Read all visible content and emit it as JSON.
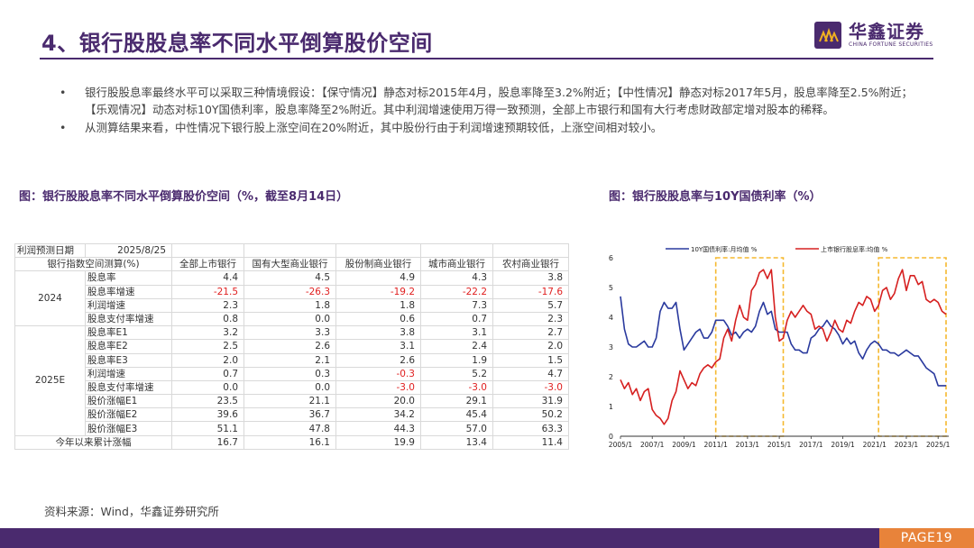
{
  "slide": {
    "title": "4、银行股股息率不同水平倒算股价空间",
    "logo_cn": "华鑫证券",
    "logo_en": "CHINA FORTUNE SECURITIES",
    "page": "PAGE19",
    "source": "资料来源：Wind，华鑫证券研究所"
  },
  "bullets": [
    "银行股股息率最终水平可以采取三种情境假设：【保守情况】静态对标2015年4月，股息率降至3.2%附近；【中性情况】静态对标2017年5月，股息率降至2.5%附近；【乐观情况】动态对标10Y国债利率，股息率降至2%附近。其中利润增速使用万得一致预测，全部上市银行和国有大行考虑财政部定增对股本的稀释。",
    "从测算结果来看，中性情况下银行股上涨空间在20%附近，其中股份行由于利润增速预期较低，上涨空间相对较小。"
  ],
  "table": {
    "title": "图：银行股股息率不同水平倒算股价空间（%，截至8月14日）",
    "date_label": "利润预测日期",
    "date_value": "2025/8/25",
    "corner_label": "银行指数空间测算(%)",
    "columns": [
      "全部上市银行",
      "国有大型商业银行",
      "股份制商业银行",
      "城市商业银行",
      "农村商业银行"
    ],
    "groups": [
      {
        "label": "2024",
        "rows": [
          {
            "label": "股息率",
            "values": [
              "4.4",
              "4.5",
              "4.9",
              "4.3",
              "3.8"
            ]
          },
          {
            "label": "股息率增速",
            "values": [
              "-21.5",
              "-26.3",
              "-19.2",
              "-22.2",
              "-17.6"
            ]
          },
          {
            "label": "利润增速",
            "values": [
              "2.3",
              "1.8",
              "1.8",
              "7.3",
              "5.7"
            ]
          },
          {
            "label": "股息支付率增速",
            "values": [
              "0.8",
              "0.0",
              "0.6",
              "0.7",
              "2.3"
            ]
          }
        ]
      },
      {
        "label": "2025E",
        "rows": [
          {
            "label": "股息率E1",
            "values": [
              "3.2",
              "3.3",
              "3.8",
              "3.1",
              "2.7"
            ]
          },
          {
            "label": "股息率E2",
            "values": [
              "2.5",
              "2.6",
              "3.1",
              "2.4",
              "2.0"
            ]
          },
          {
            "label": "股息率E3",
            "values": [
              "2.0",
              "2.1",
              "2.6",
              "1.9",
              "1.5"
            ]
          },
          {
            "label": "利润增速",
            "values": [
              "0.7",
              "0.3",
              "-0.3",
              "5.2",
              "4.7"
            ]
          },
          {
            "label": "股息支付率增速",
            "values": [
              "0.0",
              "0.0",
              "-3.0",
              "-3.0",
              "-3.0"
            ]
          },
          {
            "label": "股价涨幅E1",
            "values": [
              "23.5",
              "21.1",
              "20.0",
              "29.1",
              "31.9"
            ]
          },
          {
            "label": "股价涨幅E2",
            "values": [
              "39.6",
              "36.7",
              "34.2",
              "45.4",
              "50.2"
            ]
          },
          {
            "label": "股价涨幅E3",
            "values": [
              "51.1",
              "47.8",
              "44.3",
              "57.0",
              "63.3"
            ]
          }
        ]
      }
    ],
    "total_row": {
      "label": "今年以来累计涨幅",
      "values": [
        "16.7",
        "16.1",
        "19.9",
        "13.4",
        "11.4"
      ]
    }
  },
  "chart_data": {
    "type": "line",
    "title": "图：银行股股息率与10Y国债利率（%）",
    "x_ticks": [
      "2005/1",
      "2007/1",
      "2009/1",
      "2011/1",
      "2013/1",
      "2015/1",
      "2017/1",
      "2019/1",
      "2021/1",
      "2023/1",
      "2025/1"
    ],
    "ylim": [
      0,
      6
    ],
    "y_ticks": [
      0,
      1,
      2,
      3,
      4,
      5,
      6
    ],
    "series": [
      {
        "name": "10Y国债利率:月均值 %",
        "color": "#2a3a9e",
        "x": [
          2005.0,
          2005.25,
          2005.5,
          2005.75,
          2006.0,
          2006.25,
          2006.5,
          2006.75,
          2007.0,
          2007.25,
          2007.5,
          2007.75,
          2008.0,
          2008.25,
          2008.5,
          2008.75,
          2009.0,
          2009.25,
          2009.5,
          2009.75,
          2010.0,
          2010.25,
          2010.5,
          2010.75,
          2011.0,
          2011.25,
          2011.5,
          2011.75,
          2012.0,
          2012.25,
          2012.5,
          2012.75,
          2013.0,
          2013.25,
          2013.5,
          2013.75,
          2014.0,
          2014.25,
          2014.5,
          2014.75,
          2015.0,
          2015.25,
          2015.5,
          2015.75,
          2016.0,
          2016.25,
          2016.5,
          2016.75,
          2017.0,
          2017.25,
          2017.5,
          2017.75,
          2018.0,
          2018.25,
          2018.5,
          2018.75,
          2019.0,
          2019.25,
          2019.5,
          2019.75,
          2020.0,
          2020.25,
          2020.5,
          2020.75,
          2021.0,
          2021.25,
          2021.5,
          2021.75,
          2022.0,
          2022.25,
          2022.5,
          2022.75,
          2023.0,
          2023.25,
          2023.5,
          2023.75,
          2024.0,
          2024.25,
          2024.5,
          2024.75,
          2025.0,
          2025.25,
          2025.5
        ],
        "values": [
          4.7,
          3.6,
          3.1,
          3.0,
          3.0,
          3.1,
          3.2,
          3.0,
          3.0,
          3.3,
          4.2,
          4.5,
          4.3,
          4.3,
          4.5,
          3.6,
          2.9,
          3.1,
          3.3,
          3.5,
          3.6,
          3.3,
          3.3,
          3.5,
          3.9,
          3.9,
          3.9,
          3.7,
          3.4,
          3.5,
          3.3,
          3.5,
          3.6,
          3.5,
          3.7,
          4.2,
          4.5,
          4.1,
          4.2,
          3.6,
          3.5,
          3.5,
          3.5,
          3.1,
          2.9,
          2.9,
          2.8,
          2.8,
          3.3,
          3.4,
          3.6,
          3.7,
          3.9,
          3.7,
          3.6,
          3.4,
          3.1,
          3.3,
          3.1,
          3.2,
          2.8,
          2.6,
          2.9,
          3.1,
          3.2,
          3.1,
          2.9,
          2.9,
          2.8,
          2.8,
          2.7,
          2.8,
          2.9,
          2.8,
          2.7,
          2.7,
          2.5,
          2.3,
          2.2,
          2.1,
          1.7,
          1.7,
          1.7
        ]
      },
      {
        "name": "上市银行股息率:均值 %",
        "color": "#d62020",
        "x": [
          2005.0,
          2005.25,
          2005.5,
          2005.75,
          2006.0,
          2006.25,
          2006.5,
          2006.75,
          2007.0,
          2007.25,
          2007.5,
          2007.75,
          2008.0,
          2008.25,
          2008.5,
          2008.75,
          2009.0,
          2009.25,
          2009.5,
          2009.75,
          2010.0,
          2010.25,
          2010.5,
          2010.75,
          2011.0,
          2011.25,
          2011.5,
          2011.75,
          2012.0,
          2012.25,
          2012.5,
          2012.75,
          2013.0,
          2013.25,
          2013.5,
          2013.75,
          2014.0,
          2014.25,
          2014.5,
          2014.75,
          2015.0,
          2015.25,
          2015.5,
          2015.75,
          2016.0,
          2016.25,
          2016.5,
          2016.75,
          2017.0,
          2017.25,
          2017.5,
          2017.75,
          2018.0,
          2018.25,
          2018.5,
          2018.75,
          2019.0,
          2019.25,
          2019.5,
          2019.75,
          2020.0,
          2020.25,
          2020.5,
          2020.75,
          2021.0,
          2021.25,
          2021.5,
          2021.75,
          2022.0,
          2022.25,
          2022.5,
          2022.75,
          2023.0,
          2023.25,
          2023.5,
          2023.75,
          2024.0,
          2024.25,
          2024.5,
          2024.75,
          2025.0,
          2025.25,
          2025.5
        ],
        "values": [
          1.9,
          1.6,
          1.8,
          1.4,
          1.6,
          1.2,
          1.5,
          1.6,
          0.9,
          0.7,
          0.6,
          0.4,
          0.6,
          1.2,
          1.5,
          2.2,
          1.9,
          1.6,
          1.8,
          1.7,
          2.1,
          2.3,
          2.4,
          2.3,
          2.5,
          2.6,
          3.3,
          3.6,
          3.2,
          3.9,
          4.4,
          4.0,
          3.9,
          4.9,
          5.1,
          5.5,
          5.6,
          5.3,
          5.6,
          4.0,
          3.2,
          3.3,
          3.9,
          4.2,
          4.0,
          4.2,
          4.4,
          4.2,
          4.1,
          3.6,
          3.7,
          3.6,
          3.2,
          3.5,
          3.9,
          3.6,
          3.5,
          3.9,
          3.8,
          4.2,
          4.5,
          4.4,
          4.7,
          4.6,
          4.2,
          4.4,
          4.9,
          5.0,
          4.6,
          4.8,
          5.3,
          5.6,
          4.9,
          5.4,
          5.4,
          5.1,
          5.2,
          4.6,
          4.5,
          4.6,
          4.5,
          4.2,
          4.1
        ]
      }
    ],
    "highlight_boxes": [
      [
        2011.0,
        2015.25
      ],
      [
        2021.25,
        2025.5
      ]
    ]
  }
}
